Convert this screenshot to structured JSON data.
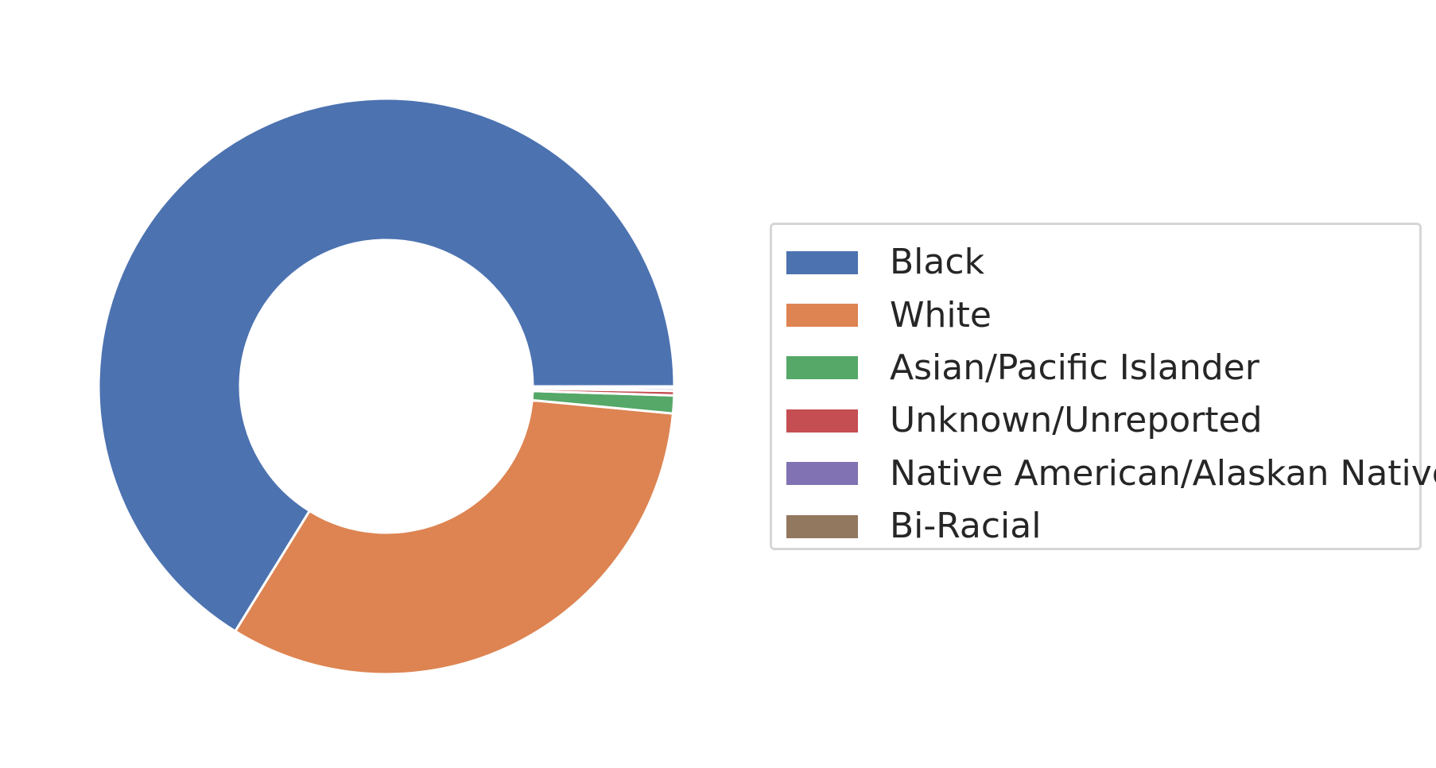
{
  "chart_data": {
    "type": "pie",
    "style": "donut",
    "title": "",
    "categories": [
      "Black",
      "White",
      "Asian/Pacific Islander",
      "Unknown/Unreported",
      "Native American/Alaskan Native",
      "Bi-Racial"
    ],
    "values": [
      66.2,
      32.3,
      1.0,
      0.25,
      0.15,
      0.1
    ],
    "colors": [
      "#4c72b0",
      "#dd8452",
      "#55a868",
      "#c44e52",
      "#8172b3",
      "#937860"
    ],
    "legend_position": "right",
    "grid": false
  }
}
